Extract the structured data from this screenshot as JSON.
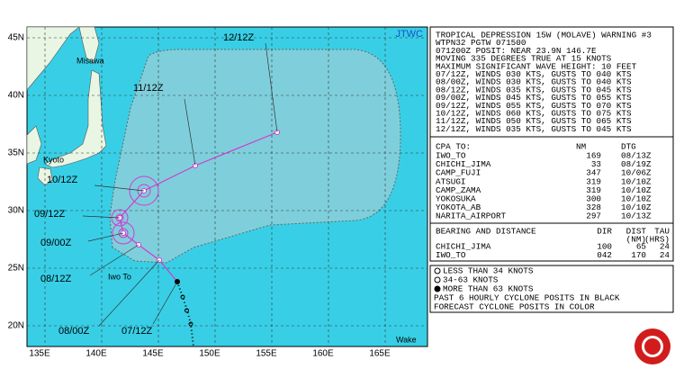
{
  "map": {
    "agency": "JTWC",
    "lat_labels": [
      "45N",
      "40N",
      "35N",
      "30N",
      "25N",
      "20N"
    ],
    "lon_labels": [
      "135E",
      "140E",
      "145E",
      "150E",
      "155E",
      "160E",
      "165E"
    ],
    "places": [
      "Misawa",
      "Kyoto",
      "Iwo To",
      "Wake"
    ],
    "track_labels": [
      "12/12Z",
      "11/12Z",
      "10/12Z",
      "09/12Z",
      "09/00Z",
      "08/12Z",
      "08/00Z",
      "07/12Z"
    ]
  },
  "warning": {
    "lines": [
      "TROPICAL DEPRESSION 15W (MOLAVE) WARNING #3",
      "WTPN32 PGTW 071500",
      "071200Z POSIT: NEAR 23.9N 146.7E",
      "MOVING 335 DEGREES TRUE AT 15 KNOTS",
      "MAXIMUM SIGNIFICANT WAVE HEIGHT: 10 FEET",
      "07/12Z, WINDS 030 KTS, GUSTS TO 040 KTS",
      "08/00Z, WINDS 030 KTS, GUSTS TO 040 KTS",
      "08/12Z, WINDS 035 KTS, GUSTS TO 045 KTS",
      "09/00Z, WINDS 045 KTS, GUSTS TO 055 KTS",
      "09/12Z, WINDS 055 KTS, GUSTS TO 070 KTS",
      "10/12Z, WINDS 060 KTS, GUSTS TO 075 KTS",
      "11/12Z, WINDS 050 KTS, GUSTS TO 065 KTS",
      "12/12Z, WINDS 035 KTS, GUSTS TO 045 KTS"
    ]
  },
  "cpa": {
    "header": [
      "CPA TO:",
      "NM",
      "DTG"
    ],
    "rows": [
      [
        "IWO_TO",
        "169",
        "08/13Z"
      ],
      [
        "CHICHI_JIMA",
        "33",
        "08/19Z"
      ],
      [
        "CAMP_FUJI",
        "347",
        "10/06Z"
      ],
      [
        "ATSUGI",
        "319",
        "10/10Z"
      ],
      [
        "CAMP_ZAMA",
        "319",
        "10/10Z"
      ],
      [
        "YOKOSUKA",
        "300",
        "10/10Z"
      ],
      [
        "YOKOTA_AB",
        "328",
        "10/10Z"
      ],
      [
        "NARITA_AIRPORT",
        "297",
        "10/13Z"
      ]
    ]
  },
  "bearing": {
    "header": [
      "BEARING AND DISTANCE",
      "DIR",
      "DIST",
      "TAU"
    ],
    "units": [
      "(NM)",
      "(HRS)"
    ],
    "rows": [
      [
        "CHICHI_JIMA",
        "100",
        "65",
        "24"
      ],
      [
        "IWO_TO",
        "042",
        "170",
        "24"
      ]
    ]
  },
  "legend": [
    "LESS THAN 34 KNOTS",
    "34-63 KNOTS",
    "MORE THAN 63 KNOTS",
    "PAST 6 HOURLY CYCLONE POSITS IN BLACK",
    "FORECAST CYCLONE POSITS IN COLOR"
  ]
}
